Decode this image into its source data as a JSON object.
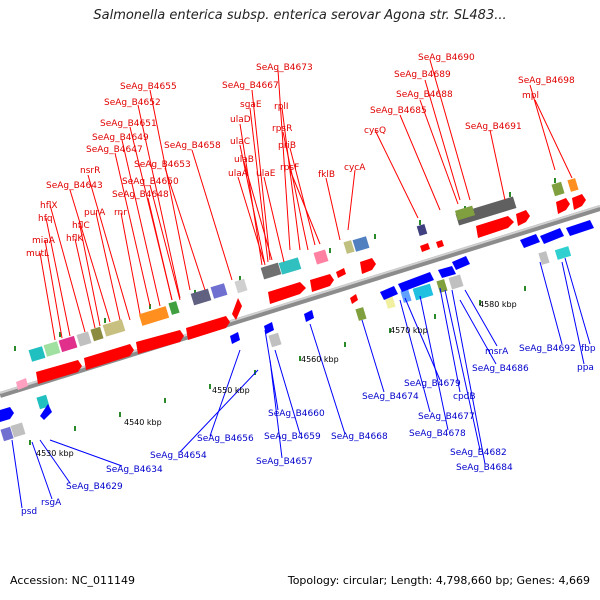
{
  "title": "Salmonella enterica subsp. enterica serovar Agona str. SL483...",
  "accession": "Accession: NC_011149",
  "summary": "Topology: circular; Length: 4,798,660 bp; Genes: 4,669",
  "colors": {
    "forward": "#ff0000",
    "reverse": "#0000ff",
    "axis": "#a0a0a0",
    "forward_label": "#e00000",
    "reverse_label": "#0000cc"
  },
  "position_labels": [
    "4530 kbp",
    "4540 kbp",
    "4550 kbp",
    "4560 kbp",
    "4570 kbp",
    "4580 kbp"
  ],
  "top_genes": [
    "SeAg_B4673",
    "SeAg_B4690",
    "SeAg_B4655",
    "SeAg_B4667",
    "SeAg_B4689",
    "SeAg_B4698",
    "SeAg_B4652",
    "sgaE",
    "rplI",
    "SeAg_B4688",
    "mpl",
    "SeAg_B4685",
    "SeAg_B4651",
    "ulaD",
    "rpsR",
    "SeAg_B4691",
    "SeAg_B4649",
    "cysQ",
    "SeAg_B4658",
    "ulaC",
    "priB",
    "SeAg_B4647",
    "ulaB",
    "rpsF",
    "SeAg_B4653",
    "cycA",
    "nsrR",
    "ulaA",
    "ulaE",
    "fklB",
    "SeAg_B4650",
    "SeAg_B4643",
    "SeAg_B4648",
    "hflX",
    "purA",
    "rnr",
    "hfq",
    "hflC",
    "hflK",
    "miaA",
    "mutL"
  ],
  "bottom_genes": [
    "msrA",
    "SeAg_B4692",
    "fbp",
    "SeAg_B4686",
    "ppa",
    "SeAg_B4674",
    "SeAg_B4679",
    "cpdB",
    "SeAg_B4660",
    "SeAg_B4677",
    "SeAg_B4656",
    "SeAg_B4659",
    "SeAg_B4668",
    "SeAg_B4678",
    "SeAg_B4654",
    "SeAg_B4682",
    "SeAg_B4657",
    "SeAg_B4684",
    "SeAg_B4634",
    "SeAg_B4629",
    "rsgA",
    "psd"
  ]
}
